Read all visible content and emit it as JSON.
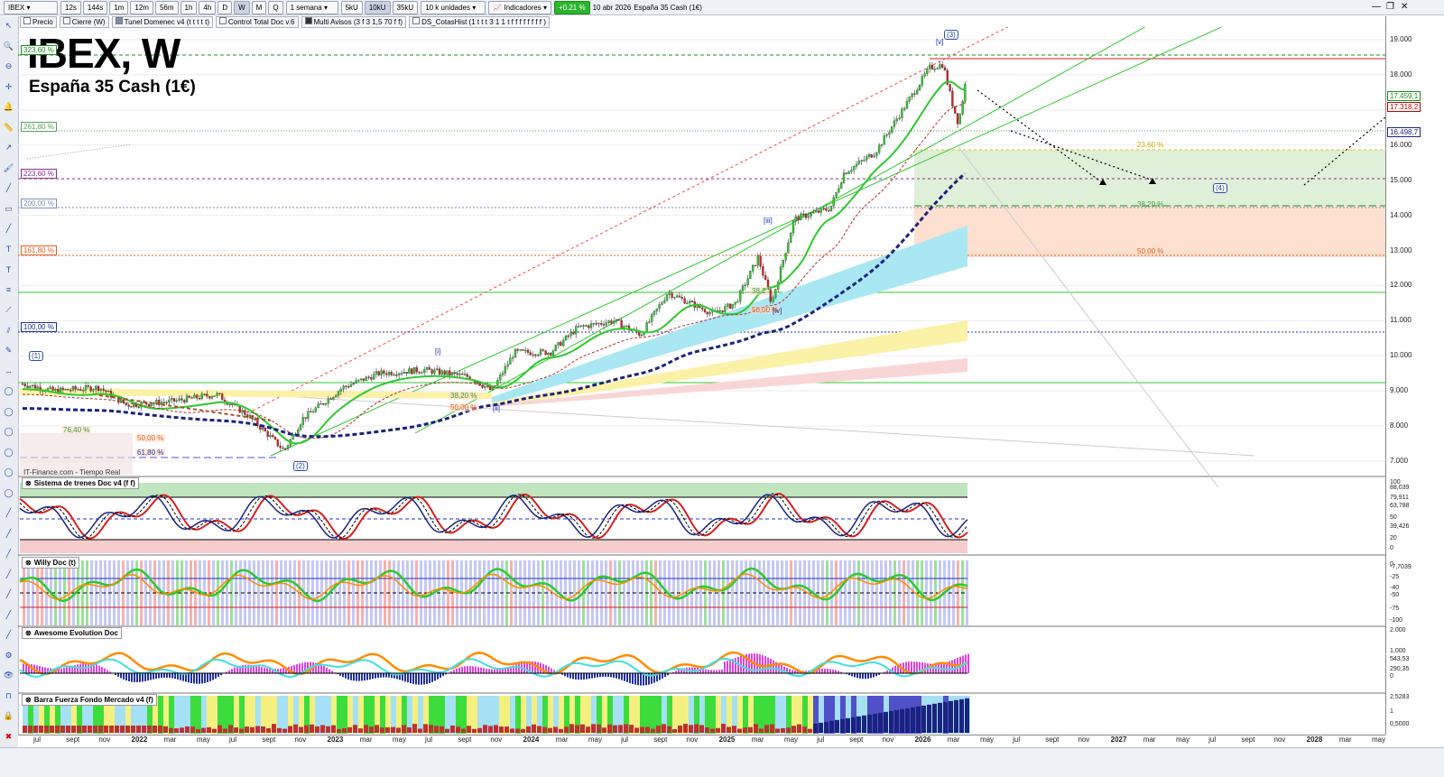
{
  "toolbar": {
    "symbol": "IBEX",
    "intervals": [
      "12s",
      "144s",
      "1m",
      "12m",
      "56m",
      "1h",
      "4h",
      "D",
      "W",
      "M",
      "Q"
    ],
    "active_interval": "W",
    "period": "1 semana",
    "units": [
      "5kU",
      "10kU",
      "35kU"
    ],
    "active_unit": "10kU",
    "units_select": "10 k unidades",
    "indicators_label": "Indicadores",
    "change": "+0.21 %",
    "date": "10 abr 2026",
    "instrument": "España 35 Cash (1€)"
  },
  "indicator_tabs": [
    "Precio",
    "Cierre (W)",
    "Tunel Domenec v4 (t t t t t)",
    "Control Total Doc v.6",
    "Multi Avisos (3 f 3 1,5 70 f f)",
    "DS_CotasHist (1 t t t 3 1 1 t f f f f f f f f )"
  ],
  "chart": {
    "title": "IBEX, W",
    "subtitle": "España 35 Cash (1€)",
    "source": "IT-Finance.com - Tiempo Real",
    "price_ticks": [
      "19.000",
      "18.000",
      "17.000",
      "16.000",
      "15.000",
      "14.000",
      "13.000",
      "12.000",
      "11.000",
      "10.000",
      "9.000",
      "8.000",
      "7.000"
    ],
    "price_tags": [
      {
        "text": "17.459,1",
        "color": "#1b8f1b"
      },
      {
        "text": "17.318,2",
        "color": "#c00000"
      },
      {
        "text": "16.498,7",
        "color": "#1a237e"
      }
    ],
    "fib_left": [
      {
        "text": "323,60 %",
        "color": "#1b8f1b"
      },
      {
        "text": "261,80 %",
        "color": "#5aa05a"
      },
      {
        "text": "223,60 %",
        "color": "#8e2c8e"
      },
      {
        "text": "200,00 %",
        "color": "#7a8fb0"
      },
      {
        "text": "161,80 %",
        "color": "#e06020"
      },
      {
        "text": "100,00 %",
        "color": "#1f2fa0"
      }
    ],
    "fib_right": [
      {
        "text": "23,60 %",
        "color": "#d4a800"
      },
      {
        "text": "38,20 %",
        "color": "#3a9a3a"
      },
      {
        "text": "50,00 %",
        "color": "#e06020"
      }
    ],
    "fib_small": [
      {
        "text": "76,40 %",
        "color": "#3a9a3a"
      },
      {
        "text": "50,00 %",
        "color": "#e06020"
      },
      {
        "text": "61,80 %",
        "color": "#1f2fa0"
      },
      {
        "text": "38,20 %",
        "color": "#3a9a3a"
      },
      {
        "text": "50,00 %",
        "color": "#e06020"
      },
      {
        "text": "38,2",
        "color": "#3a9a3a"
      },
      {
        "text": "50,00 %",
        "color": "#e06020"
      }
    ],
    "waves": [
      "(1)",
      "(2)",
      "(3)",
      "(4)",
      "[i]",
      "[ii]",
      "[iii]",
      "[iv]",
      "[v]"
    ]
  },
  "panes": [
    {
      "title": "Sistema de trenes Doc v4 (f f)",
      "labels": [
        "100",
        "88,039",
        "79,911",
        "63,788",
        "50",
        "39,426",
        "20",
        "0"
      ]
    },
    {
      "title": "Willy Doc (t)",
      "labels": [
        "0",
        "-7,7039",
        "-25",
        "-40",
        "-50",
        "-75",
        "-100"
      ]
    },
    {
      "title": "Awesome Evolution Doc",
      "labels": [
        "2.000",
        "1.000",
        "543,53",
        "290,35",
        "0"
      ]
    },
    {
      "title": "Barra Fuerza Fondo Mercado v4 (f)",
      "labels": [
        "2,5283",
        "1",
        "0,5000"
      ]
    }
  ],
  "x_axis": [
    "jul",
    "sept",
    "nov",
    "2022",
    "mar",
    "may",
    "jul",
    "sept",
    "nov",
    "2023",
    "mar",
    "may",
    "jul",
    "sept",
    "nov",
    "2024",
    "mar",
    "may",
    "jul",
    "sept",
    "nov",
    "2025",
    "mar",
    "may",
    "jul",
    "sept",
    "nov",
    "2026",
    "mar",
    "may",
    "jul",
    "sept",
    "nov",
    "2027",
    "mar",
    "may",
    "jul",
    "sept",
    "nov",
    "2028",
    "mar",
    "may"
  ],
  "colors": {
    "bull": "#2ec92e",
    "bear": "#d62020",
    "trend": "#1a237e",
    "accent": "#2db52d"
  }
}
